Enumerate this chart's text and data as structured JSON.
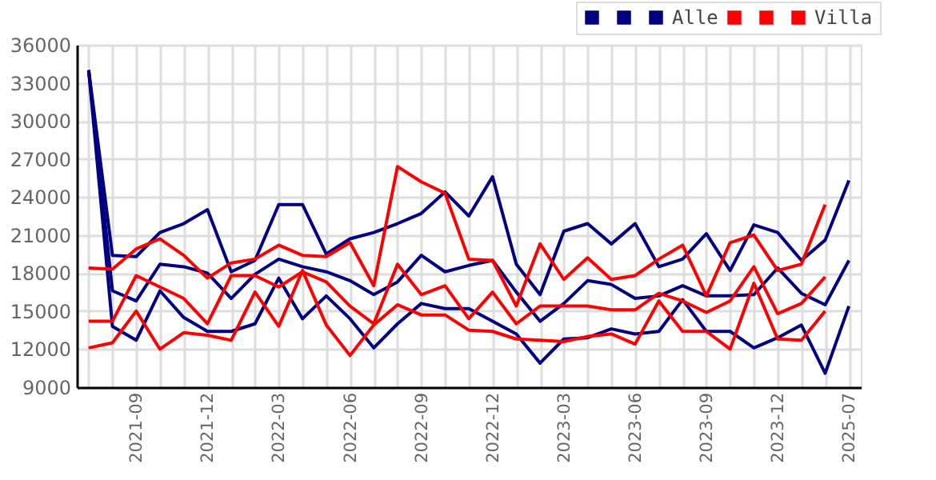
{
  "chart_data": {
    "type": "line",
    "categories": [
      null,
      null,
      "2021-09",
      null,
      null,
      "2021-12",
      null,
      null,
      "2022-03",
      null,
      null,
      "2022-06",
      null,
      null,
      "2022-09",
      null,
      null,
      "2022-12",
      null,
      null,
      "2023-03",
      null,
      null,
      "2023-06",
      null,
      null,
      "2023-09",
      null,
      null,
      "2023-12",
      null,
      null,
      "2025-07"
    ],
    "series": [
      {
        "color": "#000080",
        "values": [
          34000,
          19400,
          19300,
          21200,
          21900,
          23000,
          18100,
          19000,
          23400,
          23400,
          19500,
          20700,
          21200,
          21900,
          22700,
          24400,
          22500,
          25600,
          18700,
          16300,
          21300,
          21900,
          20300,
          21900,
          18500,
          19100,
          21100,
          18200,
          21800,
          21200,
          19000,
          20600,
          25300
        ]
      },
      {
        "color": "#000080",
        "values": [
          34000,
          16600,
          15800,
          18700,
          18500,
          18000,
          16000,
          17900,
          19100,
          18500,
          18100,
          17400,
          16300,
          17300,
          19400,
          18100,
          18600,
          19000,
          16500,
          14200,
          15600,
          17400,
          17100,
          16000,
          16200,
          17000,
          16200,
          16200,
          16300,
          18400,
          16400,
          15500,
          19000
        ]
      },
      {
        "name": "Alle",
        "color": "#000080",
        "values": [
          34000,
          13800,
          12700,
          16600,
          14500,
          13400,
          13400,
          14000,
          17600,
          14400,
          16200,
          14400,
          12100,
          14000,
          15600,
          15200,
          15200,
          14200,
          13200,
          10900,
          12800,
          12900,
          13600,
          13200,
          13400,
          15900,
          13400,
          13400,
          12100,
          12900,
          13900,
          10100,
          15400
        ]
      },
      {
        "color": "#ff0000",
        "values": [
          18400,
          18300,
          19900,
          20700,
          19400,
          17600,
          18800,
          19100,
          20200,
          19400,
          19300,
          20400,
          17000,
          26400,
          25200,
          24300,
          19100,
          19000,
          15400,
          20300,
          17500,
          19200,
          17500,
          17800,
          19100,
          20200,
          16200,
          20400,
          21000,
          18200,
          18700,
          23400,
          null
        ]
      },
      {
        "color": "#ff0000",
        "values": [
          14200,
          14200,
          17800,
          16900,
          16000,
          14000,
          17800,
          17800,
          16900,
          18100,
          17300,
          15400,
          14000,
          18700,
          16300,
          17000,
          14400,
          16500,
          14000,
          15400,
          15400,
          15400,
          15100,
          15100,
          16400,
          15800,
          14900,
          15800,
          18500,
          14800,
          15600,
          17700,
          null
        ]
      },
      {
        "name": "Villa",
        "color": "#ff0000",
        "values": [
          12100,
          12500,
          15000,
          12000,
          13300,
          13100,
          12700,
          16500,
          13800,
          18200,
          13900,
          11500,
          13900,
          15500,
          14700,
          14700,
          13500,
          13400,
          12800,
          12700,
          12600,
          13000,
          13200,
          12400,
          15800,
          13400,
          13400,
          12000,
          17200,
          12800,
          12700,
          15000,
          null
        ]
      }
    ],
    "ylim": [
      9000,
      36000
    ],
    "yticks": [
      9000,
      12000,
      15000,
      18000,
      21000,
      24000,
      27000,
      30000,
      33000,
      36000
    ],
    "grid": true,
    "legend": "top right"
  }
}
